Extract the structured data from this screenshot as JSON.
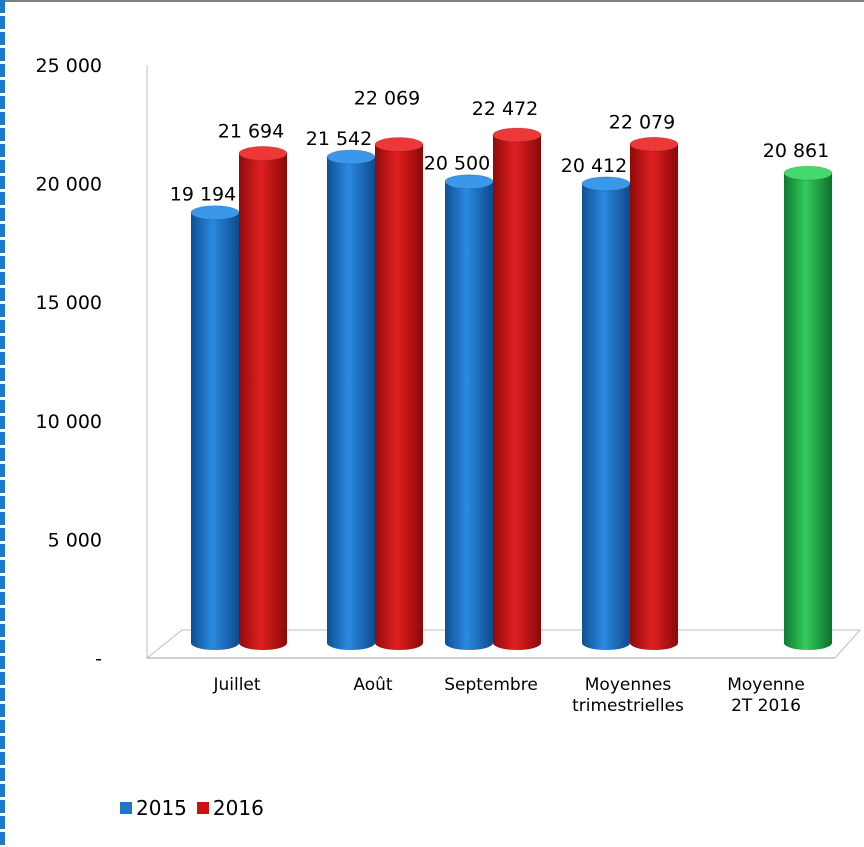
{
  "chart_data": {
    "type": "bar",
    "categories": [
      "Juillet",
      "Août",
      "Septembre",
      "Moyennes trimestrielles",
      "Moyenne 2T 2016"
    ],
    "category_lines": [
      [
        "Juillet"
      ],
      [
        "Août"
      ],
      [
        "Septembre"
      ],
      [
        "Moyennes",
        "trimestrielles"
      ],
      [
        "Moyenne",
        "2T 2016"
      ]
    ],
    "series": [
      {
        "name": "2015",
        "color": "#1f77c8",
        "values": [
          19194,
          21542,
          20500,
          20412,
          null
        ]
      },
      {
        "name": "2016",
        "color": "#cc1111",
        "values": [
          21694,
          22069,
          22472,
          22079,
          null
        ]
      },
      {
        "name": "",
        "color": "#1fb44c",
        "values": [
          null,
          null,
          null,
          null,
          20861
        ]
      }
    ],
    "data_labels": [
      [
        "19 194",
        "21 542",
        "20 500",
        "20 412",
        null
      ],
      [
        "21 694",
        "22 069",
        "22 472",
        "22 079",
        null
      ],
      [
        null,
        null,
        null,
        null,
        "20 861"
      ]
    ],
    "y_ticks": [
      0,
      5000,
      10000,
      15000,
      20000,
      25000
    ],
    "y_tick_labels": [
      "-",
      "5 000",
      "10 000",
      "15 000",
      "20 000",
      "25 000"
    ],
    "ylim": [
      0,
      25000
    ],
    "grid": false,
    "legend_position": "bottom-left",
    "style": "3d-cylinder"
  },
  "legend": {
    "items": [
      {
        "label": "2015",
        "color": "#1f77c8"
      },
      {
        "label": "2016",
        "color": "#cc1111"
      }
    ]
  }
}
